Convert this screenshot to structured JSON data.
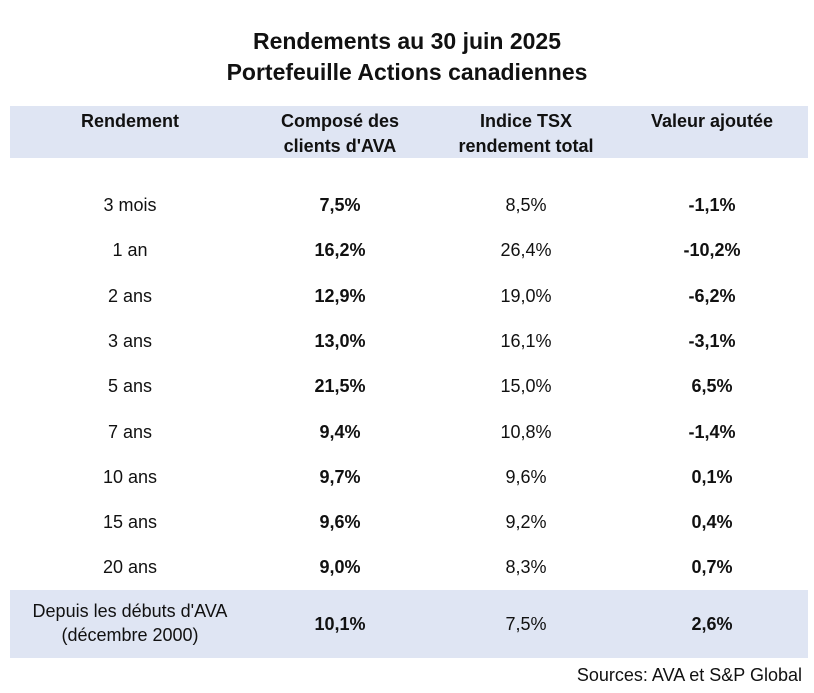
{
  "title": {
    "line1": "Rendements au 30 juin 2025",
    "line2": "Portefeuille Actions canadiennes"
  },
  "headers": {
    "col1": "Rendement",
    "col2_line1": "Composé des",
    "col2_line2": "clients d'AVA",
    "col3_line1": "Indice TSX",
    "col3_line2": "rendement total",
    "col4": "Valeur ajoutée"
  },
  "rows": [
    [
      "3 mois",
      "7,5%",
      "8,5%",
      "-1,1%"
    ],
    [
      "1 an",
      "16,2%",
      "26,4%",
      "-10,2%"
    ],
    [
      "2 ans",
      "12,9%",
      "19,0%",
      "-6,2%"
    ],
    [
      "3 ans",
      "13,0%",
      "16,1%",
      "-3,1%"
    ],
    [
      "5 ans",
      "21,5%",
      "15,0%",
      "6,5%"
    ],
    [
      "7 ans",
      "9,4%",
      "10,8%",
      "-1,4%"
    ],
    [
      "10 ans",
      "9,7%",
      "9,6%",
      "0,1%"
    ],
    [
      "15 ans",
      "9,6%",
      "9,2%",
      "0,4%"
    ],
    [
      "20 ans",
      "9,0%",
      "8,3%",
      "0,7%"
    ]
  ],
  "last_row": {
    "label_line1": "Depuis les débuts d'AVA",
    "label_line2": "(décembre 2000)",
    "ava": "10,1%",
    "tsx": "7,5%",
    "added": "2,6%"
  },
  "source": "Sources: AVA et S&P Global",
  "colors": {
    "header_band": "#dfe5f3",
    "text": "#111111"
  }
}
